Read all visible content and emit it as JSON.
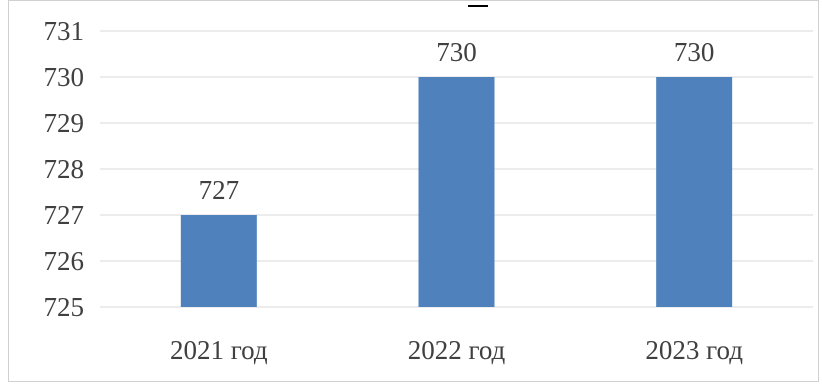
{
  "chart_data": {
    "type": "bar",
    "categories": [
      "2021 год",
      "2022 год",
      "2023 год"
    ],
    "values": [
      727,
      730,
      730
    ],
    "data_labels": [
      "727",
      "730",
      "730"
    ],
    "ylim": [
      725,
      731
    ],
    "y_ticks": [
      "725",
      "726",
      "727",
      "728",
      "729",
      "730",
      "731"
    ],
    "grid": true,
    "legend": "none",
    "bar_color": "#4f81bd",
    "grid_color": "#d9d9d9"
  }
}
